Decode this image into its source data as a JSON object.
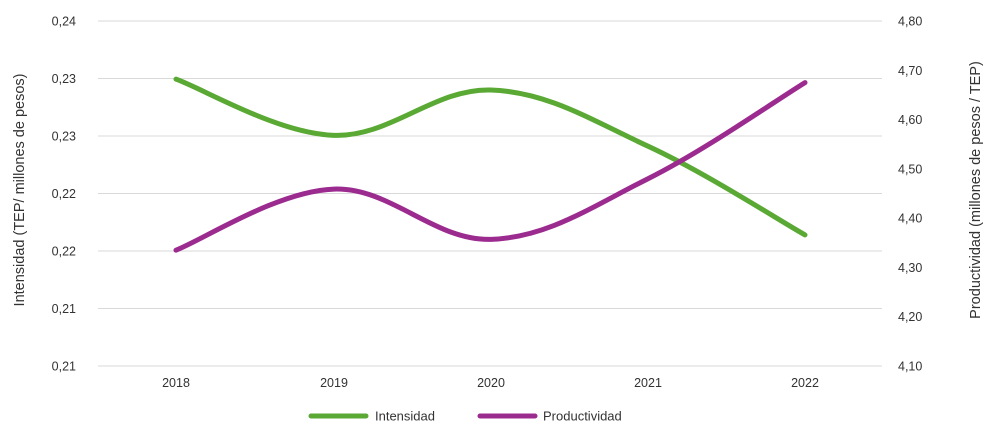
{
  "chart_data": {
    "type": "line",
    "categories": [
      "2018",
      "2019",
      "2020",
      "2021",
      "2022"
    ],
    "series": [
      {
        "name": "Intensidad",
        "axis": "left",
        "color": "#5aa934",
        "values": [
          0.2341,
          0.2284,
          0.233,
          0.2273,
          0.2183
        ]
      },
      {
        "name": "Productividad",
        "axis": "right",
        "color": "#9c2b8f",
        "values": [
          4.335,
          4.459,
          4.357,
          4.48,
          4.675
        ]
      }
    ],
    "left_axis": {
      "title": "Intensidad (TEP/ millones de pesos)",
      "ylim": [
        0.205,
        0.24
      ],
      "tick_labels": [
        "0,21",
        "0,21",
        "0,22",
        "0,22",
        "0,23",
        "0,23",
        "0,24"
      ]
    },
    "right_axis": {
      "title": "Productividad (millones de pesos / TEP)",
      "ylim": [
        4.1,
        4.8
      ],
      "tick_labels": [
        "4,10",
        "4,20",
        "4,30",
        "4,40",
        "4,50",
        "4,60",
        "4,70",
        "4,80"
      ]
    },
    "grid": true,
    "legend": "bottom"
  }
}
